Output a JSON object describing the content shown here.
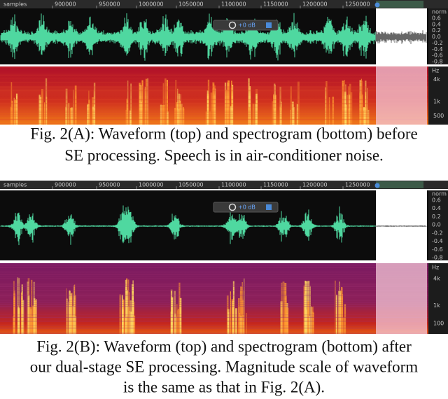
{
  "panels": [
    {
      "ruler": {
        "unit": "samples",
        "labels": [
          "900000",
          "950000",
          "1000000",
          "1050000",
          "1100000",
          "1150000",
          "1200000",
          "1250000"
        ]
      },
      "amplitude_axis": {
        "unit": "norm",
        "labels": [
          "0.6",
          "0.4",
          "0.2",
          "0.0",
          "-0.2",
          "-0.4",
          "-0.6",
          "-0.8"
        ]
      },
      "frequency_axis": {
        "unit": "Hz",
        "labels": [
          "4k",
          "1k",
          "500"
        ]
      },
      "gain": "+0 dB",
      "caption": [
        "Fig. 2(A): Waveform (top) and spectrogram (bottom) before",
        "SE processing. Speech is in air-conditioner noise."
      ]
    },
    {
      "ruler": {
        "unit": "samples",
        "labels": [
          "900000",
          "950000",
          "1000000",
          "1050000",
          "1100000",
          "1150000",
          "1200000",
          "1250000"
        ]
      },
      "amplitude_axis": {
        "unit": "norm",
        "labels": [
          "0.6",
          "0.4",
          "0.2",
          "0.0",
          "-0.2",
          "-0.4",
          "-0.6",
          "-0.8"
        ]
      },
      "frequency_axis": {
        "unit": "Hz",
        "labels": [
          "4k",
          "1k",
          "100"
        ]
      },
      "gain": "+0 dB",
      "caption": [
        "Fig. 2(B): Waveform (top) and spectrogram (bottom) after",
        "our dual-stage SE processing. Magnitude scale of waveform",
        "is the same as that in Fig. 2(A)."
      ]
    }
  ]
}
